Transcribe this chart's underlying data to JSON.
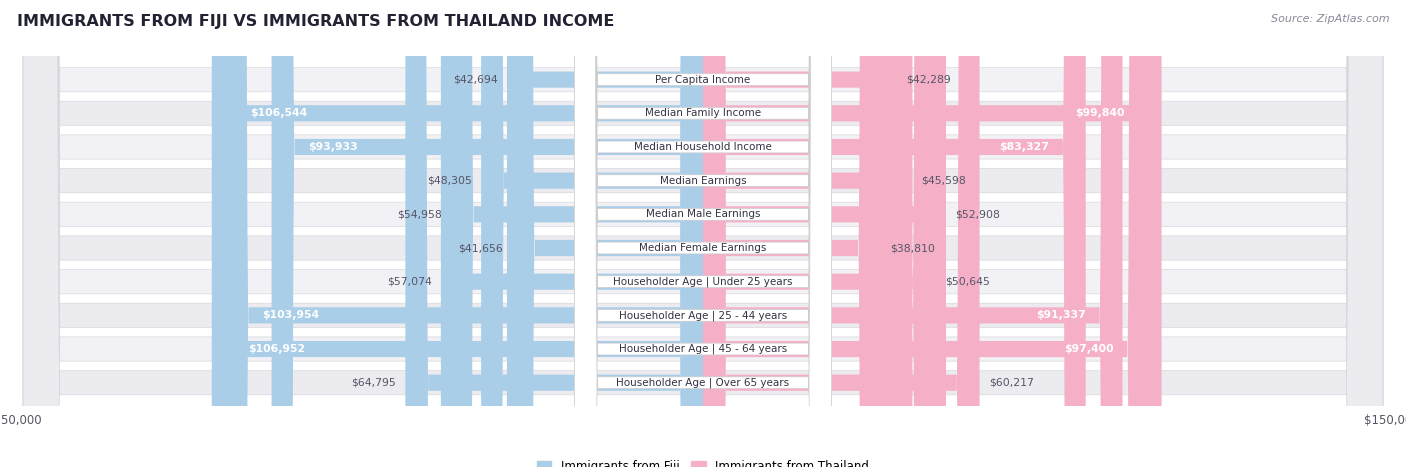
{
  "title": "IMMIGRANTS FROM FIJI VS IMMIGRANTS FROM THAILAND INCOME",
  "source": "Source: ZipAtlas.com",
  "categories": [
    "Per Capita Income",
    "Median Family Income",
    "Median Household Income",
    "Median Earnings",
    "Median Male Earnings",
    "Median Female Earnings",
    "Householder Age | Under 25 years",
    "Householder Age | 25 - 44 years",
    "Householder Age | 45 - 64 years",
    "Householder Age | Over 65 years"
  ],
  "fiji_values": [
    42694,
    106544,
    93933,
    48305,
    54958,
    41656,
    57074,
    103954,
    106952,
    64795
  ],
  "thailand_values": [
    42289,
    99840,
    83327,
    45598,
    52908,
    38810,
    50645,
    91337,
    97400,
    60217
  ],
  "fiji_color": "#6aaed6",
  "thailand_color": "#f07ca0",
  "fiji_color_light": "#aacde8",
  "thailand_color_light": "#f5b0c8",
  "fiji_label": "Immigrants from Fiji",
  "thailand_label": "Immigrants from Thailand",
  "max_value": 150000,
  "row_bg_odd": "#f0f0f4",
  "row_bg_even": "#e8e8ee",
  "fiji_white_text_values": [
    106544,
    93933,
    103954,
    106952
  ],
  "thailand_white_text_values": [
    99840,
    83327,
    91337,
    97400
  ]
}
